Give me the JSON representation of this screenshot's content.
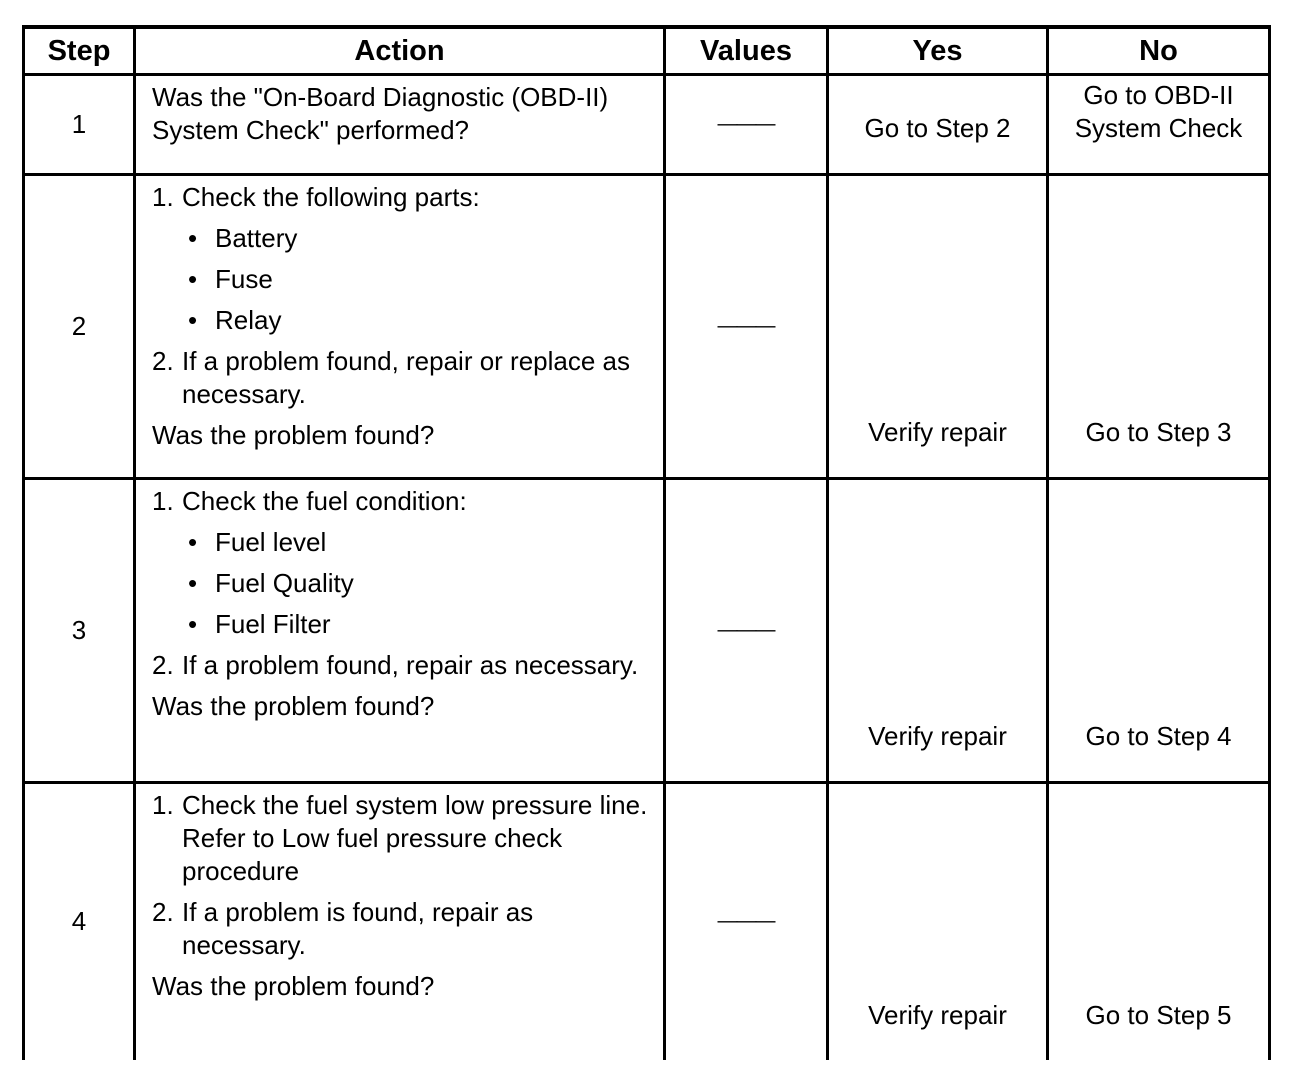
{
  "headers": {
    "step": "Step",
    "action": "Action",
    "values": "Values",
    "yes": "Yes",
    "no": "No"
  },
  "rows": [
    {
      "step": "1",
      "action_text": "Was the \"On-Board Diagnostic (OBD-II) System Check\" performed?",
      "value": "———",
      "yes": "Go to Step 2",
      "no": "Go to OBD-II System Check"
    },
    {
      "step": "2",
      "items": [
        {
          "n": "1.",
          "text": "Check the following parts:",
          "bullets": [
            "Battery",
            "Fuse",
            "Relay"
          ]
        },
        {
          "n": "2.",
          "text": "If a problem found, repair or replace as necessary."
        }
      ],
      "question": "Was the problem found?",
      "value": "———",
      "yes": "Verify repair",
      "no": "Go to Step 3"
    },
    {
      "step": "3",
      "items": [
        {
          "n": "1.",
          "text": "Check the fuel condition:",
          "bullets": [
            "Fuel level",
            "Fuel Quality",
            "Fuel Filter"
          ]
        },
        {
          "n": "2.",
          "text": "If a problem found, repair as necessary."
        }
      ],
      "question": "Was the problem found?",
      "value": "———",
      "yes": "Verify repair",
      "no": "Go to Step 4"
    },
    {
      "step": "4",
      "items": [
        {
          "n": "1.",
          "text": "Check the fuel system low pressure line.",
          "extra": "Refer to Low fuel pressure check procedure"
        },
        {
          "n": "2.",
          "text": "If a problem is found, repair as necessary."
        }
      ],
      "question": "Was the problem found?",
      "value": "———",
      "yes": "Verify repair",
      "no": "Go to Step 5"
    }
  ],
  "bullet_glyph": "•"
}
